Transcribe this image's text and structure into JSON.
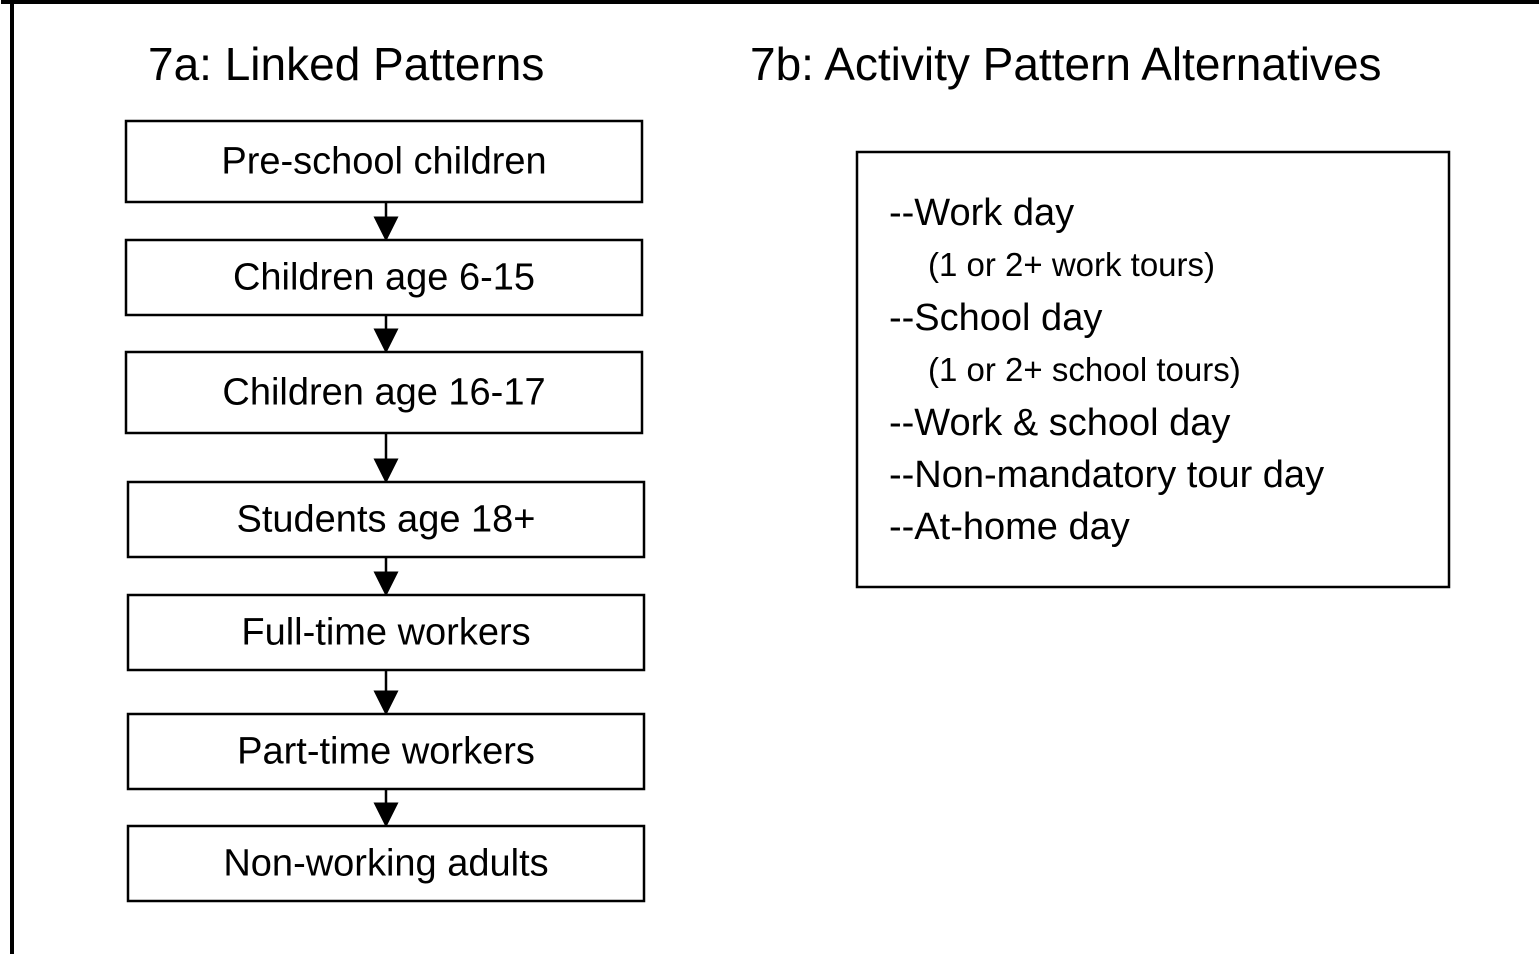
{
  "left": {
    "title": "7a:  Linked Patterns",
    "nodes": [
      {
        "label": "Pre-school children"
      },
      {
        "label": "Children age 6-15"
      },
      {
        "label": "Children age 16-17"
      },
      {
        "label": "Students age 18+"
      },
      {
        "label": "Full-time workers"
      },
      {
        "label": "Part-time workers"
      },
      {
        "label": "Non-working adults"
      }
    ]
  },
  "right": {
    "title": "7b:  Activity Pattern Alternatives",
    "items": [
      {
        "text": "--Work day",
        "note": "(1 or 2+ work tours)"
      },
      {
        "text": "--School day",
        "note": "(1 or 2+ school tours)"
      },
      {
        "text": "--Work & school day"
      },
      {
        "text": "--Non-mandatory tour day"
      },
      {
        "text": "--At-home day"
      }
    ]
  }
}
